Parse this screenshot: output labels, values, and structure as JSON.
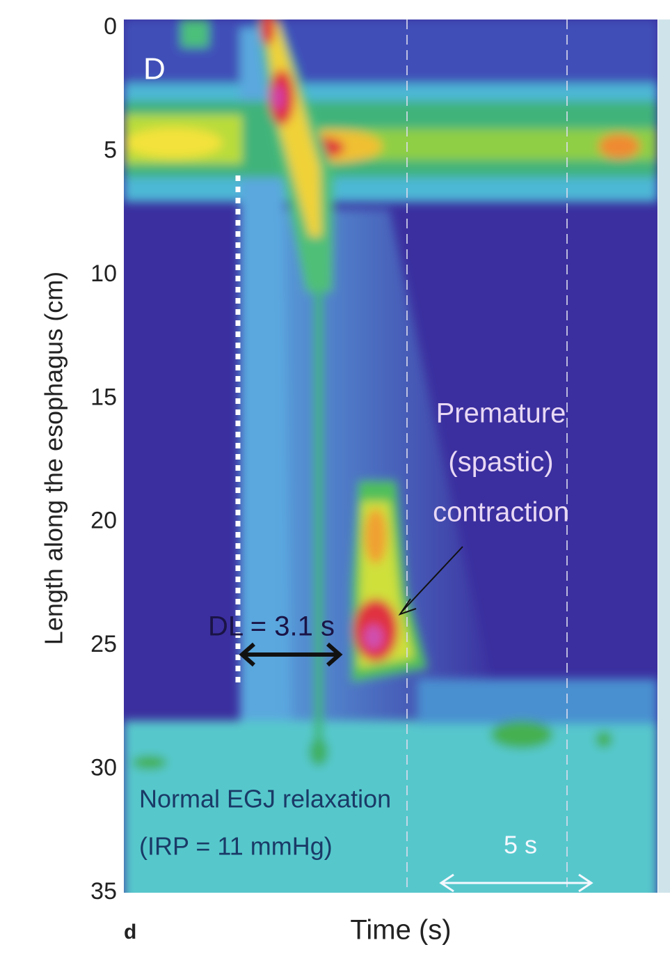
{
  "chart_data": {
    "type": "heatmap",
    "panel_label": "D",
    "ylabel": "Length along the esophagus (cm)",
    "xlabel": "Time (s)",
    "ylim": [
      0,
      35
    ],
    "yticks": [
      0,
      5,
      10,
      15,
      20,
      25,
      30,
      35
    ],
    "annotations": [
      {
        "lines": [
          "Premature",
          "(spastic)",
          "contraction"
        ]
      },
      {
        "lines": [
          "DL = 3.1 s"
        ]
      },
      {
        "lines": [
          "Normal EGJ relaxation",
          "(IRP = 11 mmHg)"
        ]
      },
      {
        "lines": [
          "5 s"
        ]
      }
    ]
  },
  "figure_label": "d"
}
